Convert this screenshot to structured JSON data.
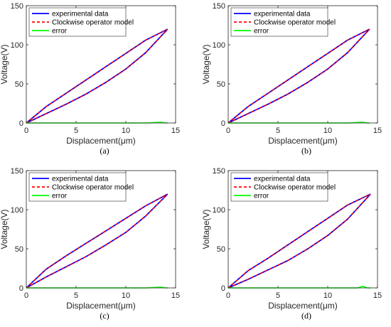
{
  "chart_data": [
    {
      "type": "line",
      "panel_label": "(a)",
      "xlabel": "Displacement(μm)",
      "ylabel": "Voltage(V)",
      "xlim": [
        0,
        15
      ],
      "ylim": [
        0,
        150
      ],
      "xticks": [
        0,
        5,
        10,
        15
      ],
      "yticks": [
        0,
        50,
        100,
        150
      ],
      "grid": false,
      "legend_position": "top-left",
      "series": [
        {
          "name": "experimental data",
          "color": "#0000ff",
          "style": "solid",
          "branches": [
            {
              "x": [
                0,
                2,
                4,
                6,
                8,
                10,
                12,
                14.2
              ],
              "y": [
                0,
                21,
                38,
                55,
                72,
                89,
                106,
                120
              ]
            },
            {
              "x": [
                0,
                2,
                4,
                6,
                8,
                10,
                12,
                14.2
              ],
              "y": [
                0,
                12,
                24,
                37,
                52,
                69,
                90,
                120
              ]
            }
          ]
        },
        {
          "name": "Clockwise operator model",
          "color": "#ff0000",
          "style": "dashed",
          "branches": [
            {
              "x": [
                0,
                2,
                4,
                6,
                8,
                10,
                12,
                14.2
              ],
              "y": [
                0,
                21,
                38,
                55,
                72,
                89,
                106,
                120
              ]
            },
            {
              "x": [
                0,
                2,
                4,
                6,
                8,
                10,
                12,
                14.2
              ],
              "y": [
                0,
                12,
                24,
                37,
                52,
                69,
                90,
                120
              ]
            }
          ]
        },
        {
          "name": "error",
          "color": "#00ff00",
          "style": "solid",
          "branches": [
            {
              "x": [
                0,
                2,
                4,
                6,
                8,
                10,
                12,
                13.5,
                14,
                14.2
              ],
              "y": [
                0,
                0,
                0,
                0,
                0,
                0,
                0,
                1,
                0,
                0
              ]
            }
          ]
        }
      ]
    },
    {
      "type": "line",
      "panel_label": "(b)",
      "xlabel": "Displacement(μm)",
      "ylabel": "Voltage(V)",
      "xlim": [
        0,
        15
      ],
      "ylim": [
        0,
        150
      ],
      "xticks": [
        0,
        5,
        10,
        15
      ],
      "yticks": [
        0,
        50,
        100,
        150
      ],
      "grid": false,
      "legend_position": "top-left",
      "series": [
        {
          "name": "experimental data",
          "color": "#0000ff",
          "style": "solid",
          "branches": [
            {
              "x": [
                0,
                2,
                4,
                6,
                8,
                10,
                12,
                14.2
              ],
              "y": [
                0,
                21,
                38,
                55,
                72,
                89,
                106,
                120
              ]
            },
            {
              "x": [
                0,
                2,
                4,
                6,
                8,
                10,
                12,
                14.2
              ],
              "y": [
                0,
                12,
                24,
                37,
                52,
                69,
                90,
                120
              ]
            }
          ]
        },
        {
          "name": "Clockwise operator model",
          "color": "#ff0000",
          "style": "dashed",
          "branches": [
            {
              "x": [
                0,
                2,
                4,
                6,
                8,
                10,
                12,
                14.2
              ],
              "y": [
                0,
                21,
                38,
                55,
                72,
                89,
                106,
                120
              ]
            },
            {
              "x": [
                0,
                2,
                4,
                6,
                8,
                10,
                12,
                14.2
              ],
              "y": [
                0,
                12,
                24,
                37,
                52,
                69,
                90,
                120
              ]
            }
          ]
        },
        {
          "name": "error",
          "color": "#00ff00",
          "style": "solid",
          "branches": [
            {
              "x": [
                0,
                2,
                4,
                6,
                8,
                10,
                12,
                13.5,
                14,
                14.2
              ],
              "y": [
                0,
                0,
                0,
                0,
                0,
                0,
                0,
                1,
                0,
                0
              ]
            }
          ]
        }
      ]
    },
    {
      "type": "line",
      "panel_label": "(c)",
      "xlabel": "Displacement(μm)",
      "ylabel": "Voltage(V)",
      "xlim": [
        0,
        15
      ],
      "ylim": [
        0,
        150
      ],
      "xticks": [
        0,
        5,
        10,
        15
      ],
      "yticks": [
        0,
        50,
        100,
        150
      ],
      "grid": false,
      "legend_position": "top-left",
      "series": [
        {
          "name": "experimental data",
          "color": "#0000ff",
          "style": "solid",
          "branches": [
            {
              "x": [
                0,
                2,
                4,
                6,
                8,
                10,
                12,
                14.2
              ],
              "y": [
                0,
                24,
                41,
                57,
                73,
                89,
                105,
                120
              ]
            },
            {
              "x": [
                0,
                2,
                4,
                6,
                8,
                10,
                12,
                14.2
              ],
              "y": [
                0,
                14,
                27,
                40,
                55,
                71,
                92,
                120
              ]
            }
          ]
        },
        {
          "name": "Clockwise operator model",
          "color": "#ff0000",
          "style": "dashed",
          "branches": [
            {
              "x": [
                0,
                2,
                4,
                6,
                8,
                10,
                12,
                14.2
              ],
              "y": [
                0,
                24,
                41,
                57,
                73,
                89,
                105,
                120
              ]
            },
            {
              "x": [
                0,
                2,
                4,
                6,
                8,
                10,
                12,
                14.2
              ],
              "y": [
                0,
                14,
                27,
                40,
                55,
                71,
                92,
                120
              ]
            }
          ]
        },
        {
          "name": "error",
          "color": "#00ff00",
          "style": "solid",
          "branches": [
            {
              "x": [
                0,
                2,
                4,
                6,
                8,
                10,
                12,
                13.5,
                14,
                14.2
              ],
              "y": [
                0,
                0,
                0,
                0,
                0,
                0,
                0,
                1,
                0,
                0
              ]
            }
          ]
        }
      ]
    },
    {
      "type": "line",
      "panel_label": "(d)",
      "xlabel": "Displacement(μm)",
      "ylabel": "Voltage(V)",
      "xlim": [
        0,
        15
      ],
      "ylim": [
        0,
        150
      ],
      "xticks": [
        0,
        5,
        10,
        15
      ],
      "yticks": [
        0,
        50,
        100,
        150
      ],
      "grid": false,
      "legend_position": "top-left",
      "series": [
        {
          "name": "experimental data",
          "color": "#0000ff",
          "style": "solid",
          "branches": [
            {
              "x": [
                0,
                2,
                4,
                6,
                8,
                10,
                12,
                14.3
              ],
              "y": [
                0,
                22,
                38,
                55,
                72,
                89,
                106,
                120
              ]
            },
            {
              "x": [
                0,
                2,
                4,
                6,
                8,
                10,
                12,
                14.3
              ],
              "y": [
                0,
                11,
                23,
                35,
                50,
                67,
                88,
                120
              ]
            }
          ]
        },
        {
          "name": "Clockwise operator model",
          "color": "#ff0000",
          "style": "dashed",
          "branches": [
            {
              "x": [
                0,
                2,
                4,
                6,
                8,
                10,
                12,
                14.3
              ],
              "y": [
                0,
                22,
                38,
                55,
                72,
                89,
                106,
                120
              ]
            },
            {
              "x": [
                0,
                2,
                4,
                6,
                8,
                10,
                12,
                14.3
              ],
              "y": [
                0,
                11,
                23,
                35,
                50,
                67,
                88,
                120
              ]
            }
          ]
        },
        {
          "name": "error",
          "color": "#00ff00",
          "style": "solid",
          "branches": [
            {
              "x": [
                0,
                2,
                4,
                6,
                8,
                10,
                12,
                13,
                13.5,
                14,
                14.3
              ],
              "y": [
                0,
                0,
                0,
                0,
                0,
                0,
                0,
                0,
                2,
                0,
                0
              ]
            }
          ]
        }
      ]
    }
  ]
}
